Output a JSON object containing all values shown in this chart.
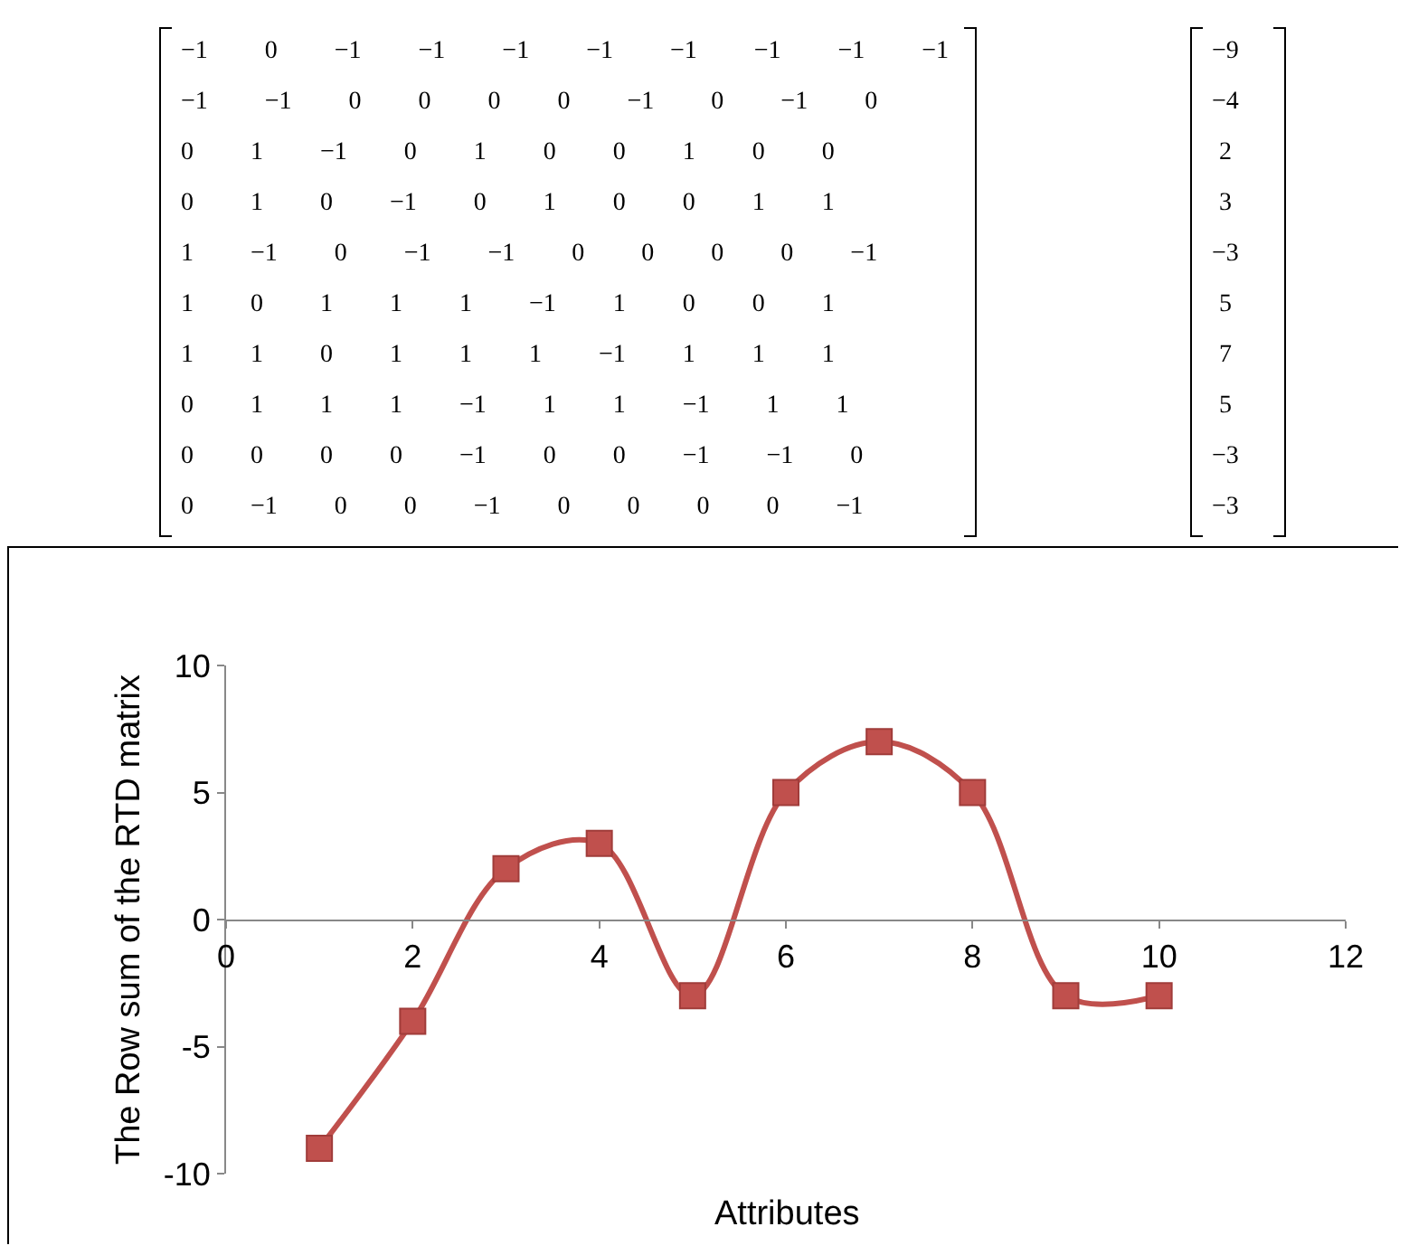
{
  "chart_data": [
    {
      "type": "other",
      "annotations": [
        "−1 0 −1 −1 −1 −1 −1 −1 −1 −1",
        "−1 −1 0 0 0 0 −1 0 −1 0",
        "0 1 −1 0 1 0 0 1 0 0",
        "0 1 0 −1 0 1 0 0 1 1",
        "1 −1 0 −1 −1 0 0 0 0 −1",
        "1 0 1 1 1 −1 1 0 0 1",
        "1 1 0 1 1 1 −1 1 1 1",
        "0 1 1 1 −1 1 1 −1 1 1",
        "0 0 0 0 −1 0 0 −1 −1 0",
        "0 −1 0 0 −1 0 0 0 0 −1",
        "−9",
        "−4",
        "2",
        "3",
        "−3",
        "5",
        "7",
        "5",
        "−3",
        "−3"
      ]
    },
    {
      "type": "line",
      "x": [
        1,
        2,
        3,
        4,
        5,
        6,
        7,
        8,
        9,
        10
      ],
      "values": [
        -9,
        -4,
        2,
        3,
        -3,
        5,
        7,
        5,
        -3,
        -3
      ],
      "color": "#c0504d",
      "marker": "square",
      "xlim": [
        0,
        12
      ],
      "xticks": [
        0,
        2,
        4,
        6,
        8,
        10,
        12
      ],
      "ylim": [
        -10,
        10
      ],
      "yticks": [
        -10,
        -5,
        0,
        5,
        10
      ],
      "xlabel": "Attributes",
      "ylabel": "The Row sum of the RTD matrix",
      "grid": false
    }
  ]
}
